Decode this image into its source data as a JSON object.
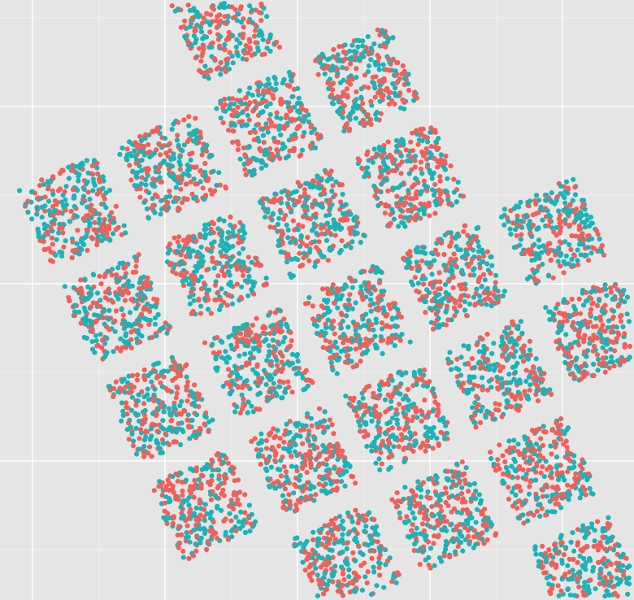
{
  "chart_data": {
    "type": "scatter",
    "title": "",
    "xlabel": "",
    "ylabel": "",
    "grid": true,
    "legend": "none",
    "axis_tick_labels_shown": false,
    "description_of_structure": "",
    "colors": {
      "panel_background": "#e5e5e5",
      "grid_major": "#ffffff",
      "grid_minor": "#f2f2f2",
      "series_a": "#f0605a",
      "series_b": "#1cb3b8"
    },
    "series": [
      {
        "color_key": "series_a"
      },
      {
        "color_key": "series_b"
      }
    ],
    "grid_lines_count": {
      "vertical_major": 4,
      "horizontal_major": 4
    },
    "cluster_grid": {
      "rows": 5,
      "cols": 5,
      "omitted_cells": [
        [
          0,
          4
        ],
        [
          1,
          4
        ]
      ],
      "extra_cells": [
        [
          -1,
          2
        ],
        [
          -1,
          3
        ],
        [
          5,
          3
        ]
      ],
      "points_per_cluster": 280
    }
  }
}
